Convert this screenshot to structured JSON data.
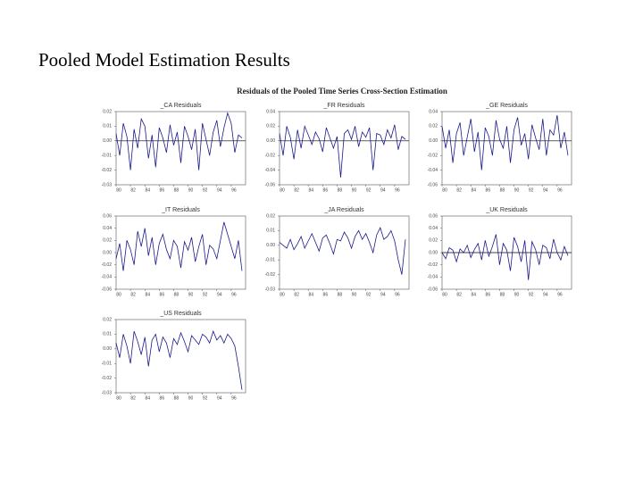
{
  "title": "Pooled Model Estimation Results",
  "figure_title": "Residuals of the Pooled Time Series Cross-Section Estimation",
  "chart_data": [
    {
      "type": "line",
      "title": "_CA Residuals",
      "color": "#1a1a8c",
      "zero_line": true,
      "x": [
        1980,
        1980.5,
        1981,
        1981.5,
        1982,
        1982.5,
        1983,
        1983.5,
        1984,
        1984.5,
        1985,
        1985.5,
        1986,
        1986.5,
        1987,
        1987.5,
        1988,
        1988.5,
        1989,
        1989.5,
        1990,
        1990.5,
        1991,
        1991.5,
        1992,
        1992.5,
        1993,
        1993.5,
        1994,
        1994.5,
        1995,
        1995.5,
        1996,
        1996.5,
        1997,
        1997.5
      ],
      "values": [
        0.005,
        -0.01,
        0.012,
        0.003,
        -0.02,
        0.008,
        -0.005,
        0.015,
        0.01,
        -0.012,
        0.004,
        -0.018,
        0.009,
        0.002,
        -0.008,
        0.011,
        -0.003,
        0.006,
        -0.015,
        0.01,
        0.003,
        -0.006,
        0.008,
        -0.02,
        0.012,
        0.001,
        -0.01,
        0.006,
        0.014,
        -0.004,
        0.009,
        0.019,
        0.012,
        -0.008,
        0.004,
        0.002
      ],
      "xlim": [
        1980,
        1998
      ],
      "xticks": [
        {
          "value": 1980,
          "label": "80"
        },
        {
          "value": 1982,
          "label": "82"
        },
        {
          "value": 1984,
          "label": "84"
        },
        {
          "value": 1986,
          "label": "86"
        },
        {
          "value": 1988,
          "label": "88"
        },
        {
          "value": 1990,
          "label": "90"
        },
        {
          "value": 1992,
          "label": "92"
        },
        {
          "value": 1994,
          "label": "94"
        },
        {
          "value": 1996,
          "label": "96"
        }
      ],
      "ylim": [
        -0.03,
        0.02
      ],
      "yticks": [
        -0.03,
        -0.02,
        -0.01,
        {
          "value": 0,
          "label": "0.00"
        },
        0.01,
        0.02
      ]
    },
    {
      "type": "line",
      "title": "_FR Residuals",
      "color": "#1a1a8c",
      "zero_line": true,
      "x": [
        1980,
        1980.5,
        1981,
        1981.5,
        1982,
        1982.5,
        1983,
        1983.5,
        1984,
        1984.5,
        1985,
        1985.5,
        1986,
        1986.5,
        1987,
        1987.5,
        1988,
        1988.5,
        1989,
        1989.5,
        1990,
        1990.5,
        1991,
        1991.5,
        1992,
        1992.5,
        1993,
        1993.5,
        1994,
        1994.5,
        1995,
        1995.5,
        1996,
        1996.5,
        1997,
        1997.5
      ],
      "values": [
        0.01,
        -0.02,
        0.02,
        0.005,
        -0.025,
        0.015,
        -0.01,
        0.02,
        0.008,
        -0.005,
        0.012,
        0.003,
        -0.015,
        0.018,
        0.004,
        -0.01,
        0.006,
        -0.05,
        0.01,
        0.015,
        0.002,
        0.02,
        -0.008,
        0.012,
        0.005,
        0.018,
        -0.04,
        0.01,
        0.008,
        -0.005,
        0.015,
        0.004,
        0.022,
        -0.012,
        0.006,
        0.002
      ],
      "xlim": [
        1980,
        1998
      ],
      "xticks": [
        {
          "value": 1980,
          "label": "80"
        },
        {
          "value": 1982,
          "label": "82"
        },
        {
          "value": 1984,
          "label": "84"
        },
        {
          "value": 1986,
          "label": "86"
        },
        {
          "value": 1988,
          "label": "88"
        },
        {
          "value": 1990,
          "label": "90"
        },
        {
          "value": 1992,
          "label": "92"
        },
        {
          "value": 1994,
          "label": "94"
        },
        {
          "value": 1996,
          "label": "96"
        }
      ],
      "ylim": [
        -0.06,
        0.04
      ],
      "yticks": [
        -0.06,
        -0.04,
        -0.02,
        {
          "value": 0,
          "label": "0.00"
        },
        0.02,
        0.04
      ]
    },
    {
      "type": "line",
      "title": "_GE Residuals",
      "color": "#1a1a8c",
      "zero_line": true,
      "x": [
        1980,
        1980.5,
        1981,
        1981.5,
        1982,
        1982.5,
        1983,
        1983.5,
        1984,
        1984.5,
        1985,
        1985.5,
        1986,
        1986.5,
        1987,
        1987.5,
        1988,
        1988.5,
        1989,
        1989.5,
        1990,
        1990.5,
        1991,
        1991.5,
        1992,
        1992.5,
        1993,
        1993.5,
        1994,
        1994.5,
        1995,
        1995.5,
        1996,
        1996.5,
        1997,
        1997.5
      ],
      "values": [
        0.02,
        -0.01,
        0.015,
        -0.03,
        0.01,
        0.025,
        -0.02,
        0.005,
        0.03,
        -0.015,
        0.012,
        -0.04,
        0.018,
        0.006,
        -0.02,
        0.028,
        0.002,
        -0.01,
        0.02,
        -0.03,
        0.015,
        0.032,
        -0.006,
        0.01,
        -0.025,
        0.022,
        0.004,
        -0.012,
        0.03,
        -0.02,
        0.015,
        0.008,
        0.035,
        -0.01,
        0.012,
        -0.02
      ],
      "xlim": [
        1980,
        1998
      ],
      "xticks": [
        {
          "value": 1980,
          "label": "80"
        },
        {
          "value": 1982,
          "label": "82"
        },
        {
          "value": 1984,
          "label": "84"
        },
        {
          "value": 1986,
          "label": "86"
        },
        {
          "value": 1988,
          "label": "88"
        },
        {
          "value": 1990,
          "label": "90"
        },
        {
          "value": 1992,
          "label": "92"
        },
        {
          "value": 1994,
          "label": "94"
        },
        {
          "value": 1996,
          "label": "96"
        }
      ],
      "ylim": [
        -0.06,
        0.04
      ],
      "yticks": [
        -0.06,
        -0.04,
        -0.02,
        {
          "value": 0,
          "label": "0.00"
        },
        0.02,
        0.04
      ]
    },
    {
      "type": "line",
      "title": "_IT Residuals",
      "color": "#1a1a8c",
      "zero_line": false,
      "x": [
        1980,
        1980.5,
        1981,
        1981.5,
        1982,
        1982.5,
        1983,
        1983.5,
        1984,
        1984.5,
        1985,
        1985.5,
        1986,
        1986.5,
        1987,
        1987.5,
        1988,
        1988.5,
        1989,
        1989.5,
        1990,
        1990.5,
        1991,
        1991.5,
        1992,
        1992.5,
        1993,
        1993.5,
        1994,
        1994.5,
        1995,
        1995.5,
        1996,
        1996.5,
        1997,
        1997.5
      ],
      "values": [
        -0.01,
        0.015,
        -0.03,
        0.02,
        0.005,
        -0.02,
        0.035,
        0.01,
        0.04,
        -0.005,
        0.025,
        -0.02,
        0.015,
        0.03,
        0.005,
        -0.01,
        0.02,
        0.01,
        -0.025,
        0.018,
        0.004,
        0.025,
        -0.015,
        0.01,
        0.03,
        -0.02,
        0.012,
        0.006,
        -0.01,
        0.02,
        0.05,
        0.03,
        0.01,
        -0.01,
        0.02,
        -0.03
      ],
      "xlim": [
        1980,
        1998
      ],
      "xticks": [
        {
          "value": 1980,
          "label": "80"
        },
        {
          "value": 1982,
          "label": "82"
        },
        {
          "value": 1984,
          "label": "84"
        },
        {
          "value": 1986,
          "label": "86"
        },
        {
          "value": 1988,
          "label": "88"
        },
        {
          "value": 1990,
          "label": "90"
        },
        {
          "value": 1992,
          "label": "92"
        },
        {
          "value": 1994,
          "label": "94"
        },
        {
          "value": 1996,
          "label": "96"
        }
      ],
      "ylim": [
        -0.06,
        0.06
      ],
      "yticks": [
        -0.06,
        -0.04,
        -0.02,
        {
          "value": 0,
          "label": "0.00"
        },
        0.02,
        0.04,
        0.06
      ]
    },
    {
      "type": "line",
      "title": "_JA Residuals",
      "color": "#1a1a8c",
      "zero_line": false,
      "x": [
        1980,
        1980.5,
        1981,
        1981.5,
        1982,
        1982.5,
        1983,
        1983.5,
        1984,
        1984.5,
        1985,
        1985.5,
        1986,
        1986.5,
        1987,
        1987.5,
        1988,
        1988.5,
        1989,
        1989.5,
        1990,
        1990.5,
        1991,
        1991.5,
        1992,
        1992.5,
        1993,
        1993.5,
        1994,
        1994.5,
        1995,
        1995.5,
        1996,
        1996.5,
        1997,
        1997.5
      ],
      "values": [
        0.002,
        0,
        -0.002,
        0.004,
        -0.003,
        0.001,
        0.006,
        -0.002,
        0.003,
        0.008,
        0.002,
        -0.004,
        0.005,
        0.007,
        0.001,
        -0.006,
        0.004,
        0.003,
        0.009,
        0.005,
        -0.002,
        0.006,
        0.01,
        0.004,
        0.008,
        0.002,
        -0.005,
        0.007,
        0.012,
        0.004,
        0.006,
        0.01,
        0.003,
        -0.01,
        -0.02,
        0.004
      ],
      "xlim": [
        1980,
        1998
      ],
      "xticks": [
        {
          "value": 1980,
          "label": "80"
        },
        {
          "value": 1982,
          "label": "82"
        },
        {
          "value": 1984,
          "label": "84"
        },
        {
          "value": 1986,
          "label": "86"
        },
        {
          "value": 1988,
          "label": "88"
        },
        {
          "value": 1990,
          "label": "90"
        },
        {
          "value": 1992,
          "label": "92"
        },
        {
          "value": 1994,
          "label": "94"
        },
        {
          "value": 1996,
          "label": "96"
        }
      ],
      "ylim": [
        -0.03,
        0.02
      ],
      "yticks": [
        -0.03,
        -0.02,
        -0.01,
        {
          "value": 0,
          "label": "0.00"
        },
        0.01,
        0.02
      ]
    },
    {
      "type": "line",
      "title": "_UK Residuals",
      "color": "#1a1a8c",
      "zero_line": true,
      "x": [
        1980,
        1980.5,
        1981,
        1981.5,
        1982,
        1982.5,
        1983,
        1983.5,
        1984,
        1984.5,
        1985,
        1985.5,
        1986,
        1986.5,
        1987,
        1987.5,
        1988,
        1988.5,
        1989,
        1989.5,
        1990,
        1990.5,
        1991,
        1991.5,
        1992,
        1992.5,
        1993,
        1993.5,
        1994,
        1994.5,
        1995,
        1995.5,
        1996,
        1996.5,
        1997,
        1997.5
      ],
      "values": [
        0,
        -0.01,
        0.008,
        0.004,
        -0.015,
        0.006,
        0,
        0.012,
        -0.008,
        0.005,
        0.015,
        -0.012,
        0.02,
        -0.006,
        0.01,
        0.03,
        -0.02,
        0.015,
        0.004,
        -0.03,
        0.025,
        0.01,
        -0.015,
        0.02,
        -0.045,
        0.018,
        0.005,
        -0.02,
        0.012,
        0.008,
        -0.01,
        0.022,
        0,
        -0.012,
        0.01,
        -0.005
      ],
      "xlim": [
        1980,
        1998
      ],
      "xticks": [
        {
          "value": 1980,
          "label": "80"
        },
        {
          "value": 1982,
          "label": "82"
        },
        {
          "value": 1984,
          "label": "84"
        },
        {
          "value": 1986,
          "label": "86"
        },
        {
          "value": 1988,
          "label": "88"
        },
        {
          "value": 1990,
          "label": "90"
        },
        {
          "value": 1992,
          "label": "92"
        },
        {
          "value": 1994,
          "label": "94"
        },
        {
          "value": 1996,
          "label": "96"
        }
      ],
      "ylim": [
        -0.06,
        0.06
      ],
      "yticks": [
        -0.06,
        -0.04,
        -0.02,
        {
          "value": 0,
          "label": "0.00"
        },
        0.02,
        0.04,
        0.06
      ]
    },
    {
      "type": "line",
      "title": "_US Residuals",
      "color": "#1a1a8c",
      "zero_line": false,
      "x": [
        1980,
        1980.5,
        1981,
        1981.5,
        1982,
        1982.5,
        1983,
        1983.5,
        1984,
        1984.5,
        1985,
        1985.5,
        1986,
        1986.5,
        1987,
        1987.5,
        1988,
        1988.5,
        1989,
        1989.5,
        1990,
        1990.5,
        1991,
        1991.5,
        1992,
        1992.5,
        1993,
        1993.5,
        1994,
        1994.5,
        1995,
        1995.5,
        1996,
        1996.5,
        1997,
        1997.5
      ],
      "values": [
        0.004,
        -0.006,
        0.01,
        0.002,
        -0.01,
        0.012,
        0.005,
        -0.004,
        0.008,
        -0.012,
        0.006,
        0.01,
        -0.002,
        0.008,
        0.004,
        -0.006,
        0.007,
        0.003,
        0.011,
        0.005,
        -0.002,
        0.009,
        0.006,
        0.003,
        0.01,
        0.008,
        0.004,
        0.012,
        0.006,
        0.009,
        0.004,
        0.01,
        0.007,
        0.002,
        -0.012,
        -0.028
      ],
      "xlim": [
        1980,
        1998
      ],
      "xticks": [
        {
          "value": 1980,
          "label": "80"
        },
        {
          "value": 1982,
          "label": "82"
        },
        {
          "value": 1984,
          "label": "84"
        },
        {
          "value": 1986,
          "label": "86"
        },
        {
          "value": 1988,
          "label": "88"
        },
        {
          "value": 1990,
          "label": "90"
        },
        {
          "value": 1992,
          "label": "92"
        },
        {
          "value": 1994,
          "label": "94"
        },
        {
          "value": 1996,
          "label": "96"
        }
      ],
      "ylim": [
        -0.03,
        0.02
      ],
      "yticks": [
        -0.03,
        -0.02,
        -0.01,
        {
          "value": 0,
          "label": "0.00"
        },
        0.01,
        0.02
      ]
    }
  ]
}
